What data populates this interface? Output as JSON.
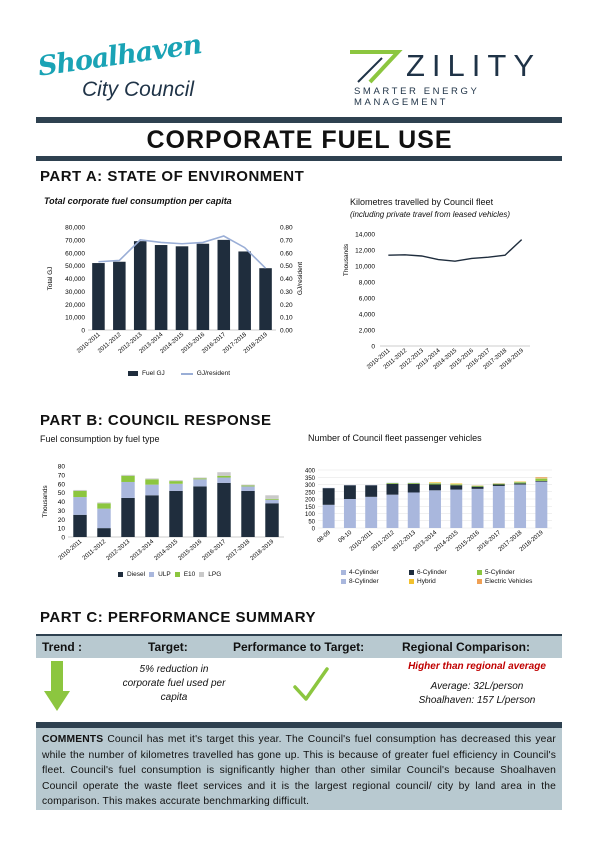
{
  "logos": {
    "left_brand": "Shoalhaven",
    "left_sub": "City Council",
    "right_word": "ZILITY",
    "right_tagline": "SMARTER ENERGY MANAGEMENT"
  },
  "page_title": "CORPORATE FUEL USE",
  "part_a": {
    "heading": "PART A: STATE OF ENVIRONMENT",
    "chart1_title": "Total corporate fuel consumption per capita",
    "chart2_title": "Kilometres travelled by Council fleet",
    "chart2_subtitle": "(including private travel from leased vehicles)"
  },
  "part_b": {
    "heading": "PART B: COUNCIL RESPONSE",
    "chart3_title": "Fuel consumption by fuel type",
    "chart4_title": "Number of Council fleet passenger vehicles"
  },
  "part_c": {
    "heading": "PART C: PERFORMANCE SUMMARY",
    "col_trend": "Trend :",
    "col_target": "Target:",
    "col_performance": "Performance to Target:",
    "col_regional": "Regional Comparison:",
    "target_text": "5% reduction in corporate fuel used per capita",
    "regional_status": "Higher than regional average",
    "average_line": "Average: 32L/person",
    "shoalhaven_line": "Shoalhaven: 157 L/person",
    "trend_icon": "down-arrow-icon",
    "performance_icon": "check-mark-icon"
  },
  "comments": {
    "label": "COMMENTS",
    "text": "Council has met it's target this year. The Council's fuel consumption has decreased this year while the number of kilometres travelled has gone up. This is because of greater fuel efficiency in Council's fleet. Council's fuel consumption is significantly higher than other similar Council's because Shoalhaven Council operate the waste fleet services and it is the largest regional council/ city by land area in the comparison. This makes accurate benchmarking difficult."
  },
  "colors": {
    "dark_navy": "#2e4150",
    "panel_grey": "#b8c9d0",
    "fuel_gj_bar": "#1f2d3d",
    "gj_resident_line": "#9aaed6",
    "km_line": "#1f2d3d",
    "diesel": "#1f2d3d",
    "ulp": "#a9b7dd",
    "e10": "#8cc63f",
    "lpg": "#c9c9c9",
    "cyl4": "#a9b7dd",
    "cyl6": "#1f2d3d",
    "cyl5": "#8cc63f",
    "cyl8": "#a9b7dd",
    "hybrid": "#f2c12e",
    "ev": "#f0a054",
    "arrow_green": "#8cc63f",
    "check_green": "#8cc63f",
    "regional_red": "#c00000"
  },
  "chart_data": [
    {
      "type": "bar",
      "title": "Total corporate fuel consumption per capita",
      "categories": [
        "2010-2011",
        "2011-2012",
        "2012-2013",
        "2013-2014",
        "2014-2015",
        "2015-2016",
        "2016-2017",
        "2017-2018",
        "2018-2019"
      ],
      "series": [
        {
          "name": "Fuel GJ",
          "type": "bar",
          "axis": "left",
          "values": [
            52000,
            53000,
            69000,
            66000,
            65000,
            67000,
            70000,
            61000,
            48000
          ]
        },
        {
          "name": "GJ/resident",
          "type": "line",
          "axis": "right",
          "values": [
            0.53,
            0.54,
            0.7,
            0.68,
            0.67,
            0.68,
            0.73,
            0.64,
            0.48
          ]
        }
      ],
      "ylabel": "Total GJ",
      "ylabel_right": "GJ/resident",
      "ylim": [
        0,
        80000
      ],
      "yticks": [
        "0",
        "10,000",
        "20,000",
        "30,000",
        "40,000",
        "50,000",
        "60,000",
        "70,000",
        "80,000"
      ],
      "ylim_right": [
        0,
        0.8
      ],
      "yticks_right": [
        "0.00",
        "0.10",
        "0.20",
        "0.30",
        "0.40",
        "0.50",
        "0.60",
        "0.70",
        "0.80"
      ],
      "legend": "bottom",
      "grid": false
    },
    {
      "type": "line",
      "title": "Kilometres travelled by Council fleet",
      "subtitle": "(including private travel from leased vehicles)",
      "categories": [
        "2010-2011",
        "2011-2012",
        "2012-2013",
        "2013-2014",
        "2014-2015",
        "2015-2016",
        "2016-2017",
        "2017-2018",
        "2018-2019"
      ],
      "series": [
        {
          "name": "",
          "values": [
            11350,
            11400,
            11250,
            10800,
            10600,
            10950,
            11100,
            11350,
            13300
          ]
        }
      ],
      "ylabel": "Thousands",
      "ylim": [
        0,
        14000
      ],
      "yticks": [
        "0",
        "2,000",
        "4,000",
        "6,000",
        "8,000",
        "10,000",
        "12,000",
        "14,000"
      ],
      "grid": false
    },
    {
      "type": "bar",
      "stacked": true,
      "title": "Fuel consumption by fuel type",
      "categories": [
        "2010-2011",
        "2011-2012",
        "2012-2013",
        "2013-2014",
        "2014-2015",
        "2015-2016",
        "2016-2017",
        "2017-2018",
        "2018-2019"
      ],
      "series": [
        {
          "name": "Diesel",
          "values": [
            25,
            10,
            44,
            47,
            52,
            57,
            61,
            52,
            38
          ]
        },
        {
          "name": "ULP",
          "values": [
            20,
            22,
            18,
            12,
            8,
            8,
            6,
            5,
            4
          ]
        },
        {
          "name": "E10",
          "values": [
            7,
            6,
            7,
            6,
            3,
            1,
            2,
            1,
            1
          ]
        },
        {
          "name": "LPG",
          "values": [
            1,
            1,
            1,
            1,
            1,
            1,
            4,
            1,
            4
          ]
        }
      ],
      "ylabel": "Thousands",
      "ylim": [
        0,
        80
      ],
      "yticks": [
        "0",
        "10",
        "20",
        "30",
        "40",
        "50",
        "60",
        "70",
        "80"
      ],
      "legend": "bottom",
      "grid": false
    },
    {
      "type": "bar",
      "stacked": true,
      "title": "Number of Council fleet passenger vehicles",
      "categories": [
        "08-09",
        "09-10",
        "2010-2011",
        "2011-2012",
        "2012-2013",
        "2013-2014",
        "2014-2015",
        "2015-2016",
        "2016-2017",
        "2017-2018",
        "2018-2019"
      ],
      "series": [
        {
          "name": "4-Cylinder",
          "values": [
            160,
            200,
            215,
            230,
            245,
            260,
            265,
            270,
            290,
            300,
            320
          ]
        },
        {
          "name": "6-Cylinder",
          "values": [
            115,
            95,
            80,
            75,
            60,
            40,
            30,
            15,
            10,
            8,
            5
          ]
        },
        {
          "name": "5-Cylinder",
          "values": [
            0,
            0,
            0,
            5,
            5,
            8,
            5,
            5,
            5,
            8,
            15
          ]
        },
        {
          "name": "8-Cylinder",
          "values": [
            2,
            2,
            2,
            2,
            2,
            2,
            2,
            2,
            2,
            2,
            2
          ]
        },
        {
          "name": "Hybrid",
          "values": [
            0,
            0,
            0,
            0,
            0,
            5,
            5,
            2,
            2,
            3,
            3
          ]
        },
        {
          "name": "Electric Vehicles",
          "values": [
            0,
            0,
            0,
            0,
            0,
            0,
            0,
            0,
            0,
            0,
            5
          ]
        }
      ],
      "ylim": [
        0,
        400
      ],
      "yticks": [
        "0",
        "50",
        "100",
        "150",
        "200",
        "250",
        "300",
        "350",
        "400"
      ],
      "legend": "bottom",
      "grid": true
    }
  ]
}
